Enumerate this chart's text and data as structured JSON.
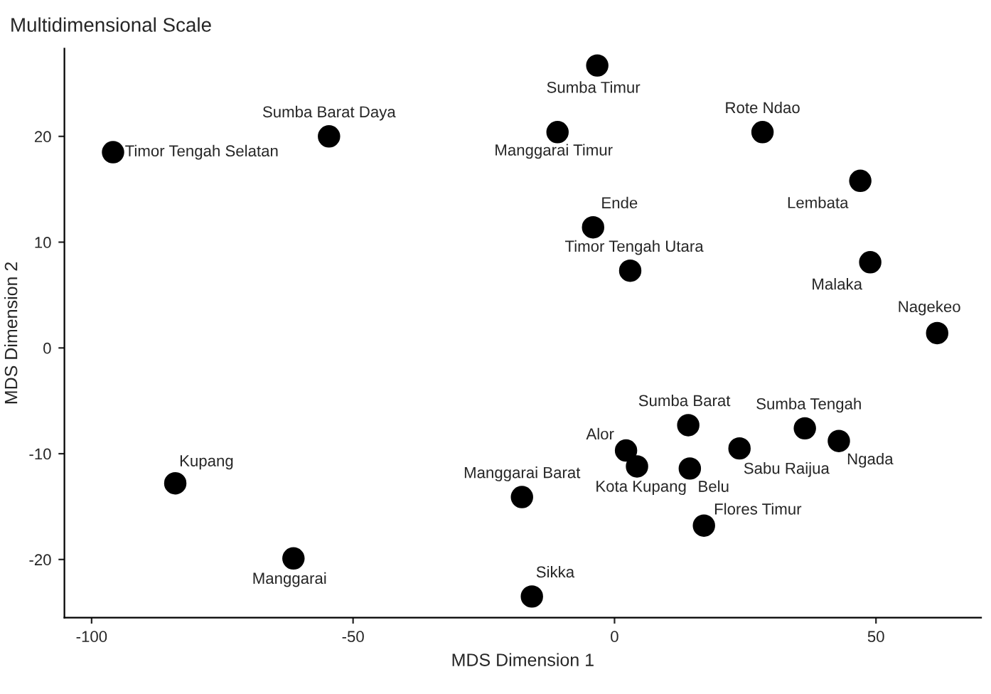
{
  "chart_data": {
    "type": "scatter",
    "title": "Multidimensional Scale",
    "xlabel": "MDS Dimension 1",
    "ylabel": "MDS Dimension 2",
    "series": [
      {
        "color": "#000000",
        "x": [
          -95.9,
          -54.6,
          -3.3,
          -10.9,
          28.3,
          47.0,
          -4.1,
          3.0,
          48.9,
          61.7,
          14.1,
          36.4,
          23.9,
          42.9,
          2.2,
          4.3,
          14.4,
          -84.0,
          -17.7,
          17.1,
          -61.4,
          -15.8
        ],
        "values": [
          18.5,
          20.0,
          26.7,
          20.4,
          20.4,
          15.8,
          11.4,
          7.3,
          8.1,
          1.4,
          -7.3,
          -7.6,
          -9.5,
          -8.8,
          -9.7,
          -11.2,
          -11.4,
          -12.8,
          -14.1,
          -16.8,
          -19.9,
          -23.5
        ]
      }
    ],
    "annotations": [
      {
        "text": "Timor Tengah Selatan",
        "x": -95.9,
        "y": 18.5
      },
      {
        "text": "Sumba Barat Daya",
        "x": -54.6,
        "y": 20.0
      },
      {
        "text": "Sumba Timur",
        "x": -3.3,
        "y": 26.7
      },
      {
        "text": "Manggarai Timur",
        "x": -10.9,
        "y": 20.4
      },
      {
        "text": "Rote Ndao",
        "x": 28.3,
        "y": 20.4
      },
      {
        "text": "Lembata",
        "x": 47.0,
        "y": 15.8
      },
      {
        "text": "Ende",
        "x": -4.1,
        "y": 11.4
      },
      {
        "text": "Timor Tengah Utara",
        "x": 3.0,
        "y": 7.3
      },
      {
        "text": "Malaka",
        "x": 48.9,
        "y": 8.1
      },
      {
        "text": "Nagekeo",
        "x": 61.7,
        "y": 1.4
      },
      {
        "text": "Sumba Barat",
        "x": 14.1,
        "y": -7.3
      },
      {
        "text": "Sumba Tengah",
        "x": 36.4,
        "y": -7.6
      },
      {
        "text": "Sabu Raijua",
        "x": 23.9,
        "y": -9.5
      },
      {
        "text": "Ngada",
        "x": 42.9,
        "y": -8.8
      },
      {
        "text": "Alor",
        "x": 2.2,
        "y": -9.7
      },
      {
        "text": "Kota Kupang",
        "x": 4.3,
        "y": -11.2
      },
      {
        "text": "Belu",
        "x": 14.4,
        "y": -11.4
      },
      {
        "text": "Kupang",
        "x": -84.0,
        "y": -12.8
      },
      {
        "text": "Manggarai Barat",
        "x": -17.7,
        "y": -14.1
      },
      {
        "text": "Flores Timur",
        "x": 17.1,
        "y": -16.8
      },
      {
        "text": "Manggarai",
        "x": -61.4,
        "y": -19.9
      },
      {
        "text": "Sikka",
        "x": -15.8,
        "y": -23.5
      }
    ],
    "xlim": [
      -105.2,
      70.1
    ],
    "ylim": [
      -25.5,
      28.3
    ],
    "xticks": [
      -100,
      -50,
      0,
      50
    ],
    "yticks": [
      -20,
      -10,
      0,
      10,
      20
    ],
    "grid": false,
    "legend": false,
    "marker": "circle"
  }
}
